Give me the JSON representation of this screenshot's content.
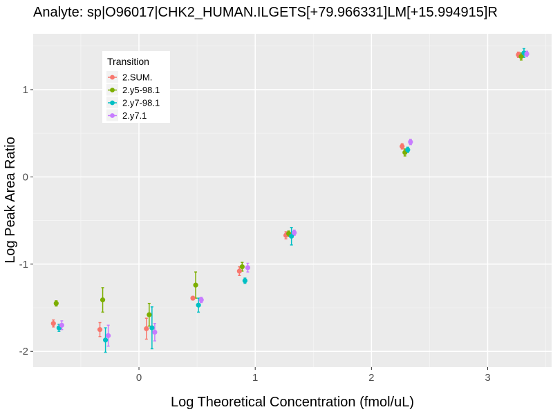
{
  "chart_data": {
    "type": "scatter",
    "title": "Analyte: sp|O96017|CHK2_HUMAN.ILGETS[+79.966331]LM[+15.994915]R",
    "xlabel": "Log Theoretical Concentration (fmol/uL)",
    "ylabel": "Log Peak Area Ratio",
    "xlim": [
      -0.91,
      3.55
    ],
    "ylim": [
      -2.18,
      1.64
    ],
    "xticks": [
      0,
      1,
      2,
      3
    ],
    "xtick_labels": [
      "0",
      "1",
      "2",
      "3"
    ],
    "yticks": [
      -2,
      -1,
      0,
      1
    ],
    "ytick_labels": [
      "-2",
      "-1",
      "0",
      "1"
    ],
    "x_levels": [
      -0.7,
      -0.3,
      0.1,
      0.5,
      0.9,
      1.3,
      2.3,
      3.3
    ],
    "legend": {
      "title": "Transition",
      "position": "top-left"
    },
    "series": [
      {
        "name": "2.SUM.",
        "color": "#F8766D",
        "y": [
          -1.68,
          -1.75,
          -1.74,
          -1.39,
          -1.08,
          -0.67,
          0.35,
          1.4
        ],
        "err": [
          0.04,
          0.08,
          0.12,
          0.02,
          0.05,
          0.04,
          0.03,
          0.03
        ]
      },
      {
        "name": "2.y5-98.1",
        "color": "#7CAE00",
        "y": [
          -1.45,
          -1.41,
          -1.58,
          -1.24,
          -1.03,
          -0.65,
          0.28,
          1.38
        ],
        "err": [
          0.03,
          0.14,
          0.13,
          0.15,
          0.05,
          0.03,
          0.04,
          0.04
        ]
      },
      {
        "name": "2.y7-98.1",
        "color": "#00BFC4",
        "y": [
          -1.73,
          -1.87,
          -1.73,
          -1.47,
          -1.19,
          -0.68,
          0.31,
          1.42
        ],
        "err": [
          0.04,
          0.14,
          0.24,
          0.08,
          0.03,
          0.1,
          0.03,
          0.05
        ]
      },
      {
        "name": "2.y7.1",
        "color": "#C77CFF",
        "y": [
          -1.7,
          -1.82,
          -1.78,
          -1.41,
          -1.04,
          -0.64,
          0.4,
          1.41
        ],
        "err": [
          0.05,
          0.12,
          0.1,
          0.03,
          0.05,
          0.03,
          0.03,
          0.03
        ]
      }
    ]
  }
}
